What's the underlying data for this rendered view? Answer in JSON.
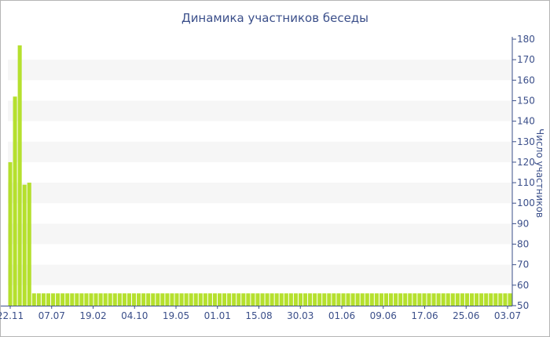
{
  "chart_data": {
    "type": "bar",
    "title": "Динамика участников беседы",
    "xlabel": "",
    "ylabel": "Число участников",
    "ylim": [
      50,
      180
    ],
    "yticks": [
      50,
      60,
      70,
      80,
      90,
      100,
      110,
      120,
      130,
      140,
      150,
      160,
      170,
      180
    ],
    "grid": "alternating horizontal bands",
    "legend": "none",
    "x_tick_labels": [
      "22.11",
      "07.07",
      "19.02",
      "04.10",
      "19.05",
      "01.01",
      "15.08",
      "30.03",
      "01.06",
      "09.06",
      "17.06",
      "25.06",
      "03.07"
    ],
    "values": [
      120,
      152,
      177,
      109,
      110,
      56,
      56,
      56,
      56,
      56,
      56,
      56,
      56,
      56,
      56,
      56,
      56,
      56,
      56,
      56,
      56,
      56,
      56,
      56,
      56,
      56,
      56,
      56,
      56,
      56,
      56,
      56,
      56,
      56,
      56,
      56,
      56,
      56,
      56,
      56,
      56,
      56,
      56,
      56,
      56,
      56,
      56,
      56,
      56,
      56,
      56,
      56,
      56,
      56,
      56,
      56,
      56,
      56,
      56,
      56,
      56,
      56,
      56,
      56,
      56,
      56,
      56,
      56,
      56,
      56,
      56,
      56,
      56,
      56,
      56,
      56,
      56,
      56,
      56,
      56,
      56,
      56,
      56,
      56,
      56,
      56,
      56,
      56,
      56,
      56,
      56,
      56,
      56,
      56,
      56,
      56,
      56,
      56,
      56,
      56,
      56,
      56,
      56,
      56,
      56,
      56
    ],
    "colors": {
      "bar": "#b5e02e",
      "band": "#f6f6f6",
      "axis": "#3b4f8a",
      "text": "#3b4f8a"
    }
  }
}
